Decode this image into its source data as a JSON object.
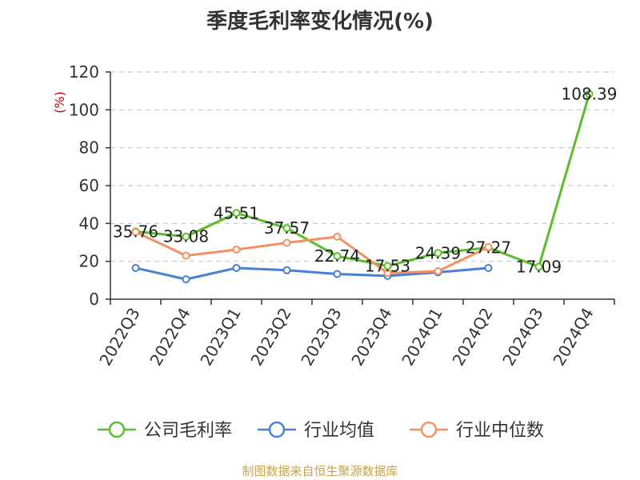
{
  "title": "季度毛利率变化情况(%)",
  "footer": "制图数据来自恒生聚源数据库",
  "chart_data": {
    "type": "line",
    "title": "季度毛利率变化情况(%)",
    "ylabel": "(%)",
    "xlabel": "",
    "ylim": [
      0,
      120
    ],
    "yticks": [
      0,
      20,
      40,
      60,
      80,
      100,
      120
    ],
    "grid": true,
    "legend": "bottom",
    "categories": [
      "2022Q3",
      "2022Q4",
      "2023Q1",
      "2023Q2",
      "2023Q3",
      "2023Q4",
      "2024Q1",
      "2024Q2",
      "2024Q3",
      "2024Q4"
    ],
    "series": [
      {
        "name": "公司毛利率",
        "color": "#5bbd2b",
        "values": [
          35.76,
          33.08,
          45.51,
          37.57,
          22.74,
          17.53,
          24.39,
          27.27,
          17.09,
          108.39
        ],
        "labels": [
          "35.76",
          "33.08",
          "45.51",
          "37.57",
          "22.74",
          "17.53",
          "24.39",
          "27.27",
          "17.09",
          "108.39"
        ]
      },
      {
        "name": "行业均值",
        "color": "#4a7fd8",
        "values": [
          16.5,
          10.5,
          16.5,
          15.3,
          13.3,
          12.3,
          14.2,
          16.5,
          null,
          null
        ]
      },
      {
        "name": "行业中位数",
        "color": "#f59060",
        "values": [
          35.5,
          23.0,
          26.2,
          29.8,
          33.0,
          13.8,
          14.8,
          27.5,
          null,
          null
        ]
      }
    ]
  }
}
